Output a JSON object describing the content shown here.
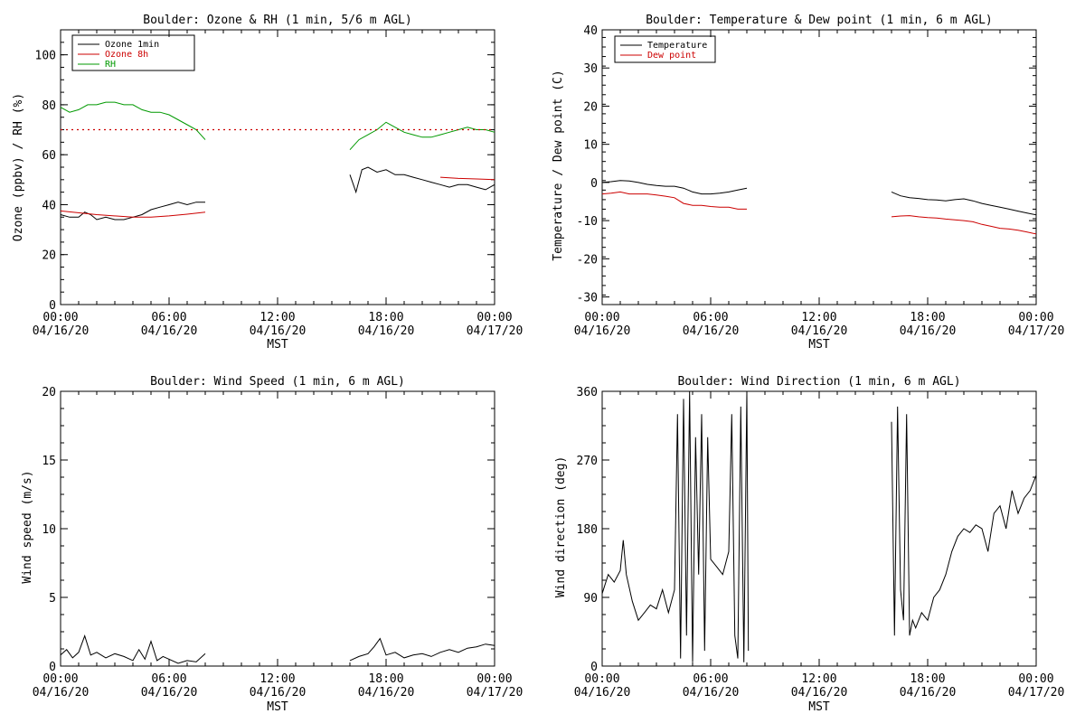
{
  "chart_data": [
    {
      "type": "line",
      "title": "Boulder: Ozone & RH (1 min, 5/6 m AGL)",
      "xlabel": "MST",
      "ylabel": "Ozone (ppbv) / RH (%)",
      "xlim": [
        "04/16/20 00:00",
        "04/17/20 00:00"
      ],
      "ylim": [
        0,
        110
      ],
      "yticks": [
        0,
        20,
        40,
        60,
        80,
        100
      ],
      "xticks": [
        {
          "time": "00:00",
          "date": "04/16/20"
        },
        {
          "time": "06:00",
          "date": "04/16/20"
        },
        {
          "time": "12:00",
          "date": "04/16/20"
        },
        {
          "time": "18:00",
          "date": "04/16/20"
        },
        {
          "time": "00:00",
          "date": "04/17/20"
        }
      ],
      "legend": {
        "placement": "top-left"
      },
      "series": [
        {
          "name": "Ozone 1min",
          "color": "#000000",
          "style": "solid",
          "x": [
            "00:00",
            "00:30",
            "01:00",
            "01:20",
            "01:40",
            "02:00",
            "02:30",
            "03:00",
            "03:30",
            "04:00",
            "04:30",
            "05:00",
            "05:30",
            "06:00",
            "06:30",
            "07:00",
            "07:30",
            "08:00",
            "16:00",
            "16:20",
            "16:40",
            "17:00",
            "17:30",
            "18:00",
            "18:30",
            "19:00",
            "19:30",
            "20:00",
            "20:30",
            "21:00",
            "21:30",
            "22:00",
            "22:30",
            "23:00",
            "23:30",
            "00:00"
          ],
          "y": [
            36,
            35,
            35,
            37,
            36,
            34,
            35,
            34,
            34,
            35,
            36,
            38,
            39,
            40,
            41,
            40,
            41,
            41,
            52,
            45,
            54,
            55,
            53,
            54,
            52,
            52,
            51,
            50,
            49,
            48,
            47,
            48,
            48,
            47,
            46,
            48
          ]
        },
        {
          "name": "Ozone 8h",
          "color": "#cc0000",
          "style": "solid",
          "x": [
            "00:00",
            "02:00",
            "04:00",
            "05:00",
            "06:00",
            "07:00",
            "08:00",
            "21:00",
            "22:00",
            "23:00",
            "00:00"
          ],
          "y": [
            37.5,
            36,
            35,
            35,
            35.5,
            36.2,
            37,
            51,
            50.5,
            50.3,
            50
          ]
        },
        {
          "name": "RH",
          "color": "#009900",
          "style": "solid",
          "x": [
            "00:00",
            "00:30",
            "01:00",
            "01:30",
            "02:00",
            "02:30",
            "03:00",
            "03:30",
            "04:00",
            "04:30",
            "05:00",
            "05:30",
            "06:00",
            "06:30",
            "07:00",
            "07:30",
            "08:00",
            "16:00",
            "16:30",
            "17:00",
            "17:30",
            "18:00",
            "18:30",
            "19:00",
            "19:30",
            "20:00",
            "20:30",
            "21:00",
            "21:30",
            "22:00",
            "22:30",
            "23:00",
            "23:30",
            "00:00"
          ],
          "y": [
            79,
            77,
            78,
            80,
            80,
            81,
            81,
            80,
            80,
            78,
            77,
            77,
            76,
            74,
            72,
            70,
            66,
            62,
            66,
            68,
            70,
            73,
            71,
            69,
            68,
            67,
            67,
            68,
            69,
            70,
            71,
            70,
            70,
            69
          ]
        },
        {
          "name": "",
          "color": "#cc0000",
          "style": "dotted",
          "x": [
            "00:00",
            "00:00"
          ],
          "y": [
            70,
            70
          ],
          "span": "full"
        }
      ]
    },
    {
      "type": "line",
      "title": "Boulder: Temperature & Dew point (1 min, 6 m AGL)",
      "xlabel": "MST",
      "ylabel": "Temperature / Dew point (C)",
      "xlim": [
        "04/16/20 00:00",
        "04/17/20 00:00"
      ],
      "ylim": [
        -32,
        40
      ],
      "yticks": [
        -30,
        -20,
        -10,
        0,
        10,
        20,
        30,
        40
      ],
      "xticks": [
        {
          "time": "00:00",
          "date": "04/16/20"
        },
        {
          "time": "06:00",
          "date": "04/16/20"
        },
        {
          "time": "12:00",
          "date": "04/16/20"
        },
        {
          "time": "18:00",
          "date": "04/16/20"
        },
        {
          "time": "00:00",
          "date": "04/17/20"
        }
      ],
      "legend": {
        "placement": "top-left"
      },
      "series": [
        {
          "name": "Temperature",
          "color": "#000000",
          "style": "solid",
          "x": [
            "00:00",
            "00:30",
            "01:00",
            "01:30",
            "02:00",
            "02:30",
            "03:00",
            "03:30",
            "04:00",
            "04:30",
            "05:00",
            "05:30",
            "06:00",
            "06:30",
            "07:00",
            "07:30",
            "08:00",
            "16:00",
            "16:30",
            "17:00",
            "17:30",
            "18:00",
            "18:30",
            "19:00",
            "19:30",
            "20:00",
            "20:30",
            "21:00",
            "21:30",
            "22:00",
            "22:30",
            "23:00",
            "23:30",
            "00:00"
          ],
          "y": [
            0,
            0.2,
            0.5,
            0.4,
            0,
            -0.5,
            -0.8,
            -1,
            -1,
            -1.5,
            -2.5,
            -3,
            -3,
            -2.8,
            -2.5,
            -2,
            -1.5,
            -2.5,
            -3.5,
            -4,
            -4.2,
            -4.5,
            -4.6,
            -4.8,
            -4.5,
            -4.3,
            -4.8,
            -5.5,
            -6,
            -6.5,
            -7,
            -7.5,
            -8,
            -8.5
          ]
        },
        {
          "name": "Dew point",
          "color": "#cc0000",
          "style": "solid",
          "x": [
            "00:00",
            "00:30",
            "01:00",
            "01:30",
            "02:00",
            "02:30",
            "03:00",
            "03:30",
            "04:00",
            "04:30",
            "05:00",
            "05:30",
            "06:00",
            "06:30",
            "07:00",
            "07:30",
            "08:00",
            "16:00",
            "16:30",
            "17:00",
            "17:30",
            "18:00",
            "18:30",
            "19:00",
            "19:30",
            "20:00",
            "20:30",
            "21:00",
            "21:30",
            "22:00",
            "22:30",
            "23:00",
            "23:30",
            "00:00"
          ],
          "y": [
            -3,
            -2.8,
            -2.5,
            -3,
            -3,
            -3,
            -3.3,
            -3.6,
            -4,
            -5.5,
            -6,
            -6,
            -6.3,
            -6.5,
            -6.5,
            -7,
            -7,
            -9,
            -8.8,
            -8.7,
            -9,
            -9.2,
            -9.3,
            -9.6,
            -9.8,
            -10,
            -10.3,
            -11,
            -11.5,
            -12,
            -12.2,
            -12.5,
            -13,
            -13.5
          ]
        }
      ]
    },
    {
      "type": "line",
      "title": "Boulder: Wind Speed (1 min, 6 m AGL)",
      "xlabel": "MST",
      "ylabel": "Wind speed (m/s)",
      "xlim": [
        "04/16/20 00:00",
        "04/17/20 00:00"
      ],
      "ylim": [
        0,
        20
      ],
      "yticks": [
        0,
        5,
        10,
        15,
        20
      ],
      "xticks": [
        {
          "time": "00:00",
          "date": "04/16/20"
        },
        {
          "time": "06:00",
          "date": "04/16/20"
        },
        {
          "time": "12:00",
          "date": "04/16/20"
        },
        {
          "time": "18:00",
          "date": "04/16/20"
        },
        {
          "time": "00:00",
          "date": "04/17/20"
        }
      ],
      "series": [
        {
          "name": "",
          "color": "#000000",
          "style": "solid",
          "x": [
            "00:00",
            "00:20",
            "00:40",
            "01:00",
            "01:20",
            "01:40",
            "02:00",
            "02:30",
            "03:00",
            "03:30",
            "04:00",
            "04:20",
            "04:40",
            "05:00",
            "05:20",
            "05:40",
            "06:00",
            "06:30",
            "07:00",
            "07:30",
            "08:00",
            "16:00",
            "16:30",
            "17:00",
            "17:20",
            "17:40",
            "18:00",
            "18:30",
            "19:00",
            "19:30",
            "20:00",
            "20:30",
            "21:00",
            "21:30",
            "22:00",
            "22:30",
            "23:00",
            "23:30",
            "00:00"
          ],
          "y": [
            0.8,
            1.2,
            0.6,
            1.0,
            2.2,
            0.8,
            1.0,
            0.6,
            0.9,
            0.7,
            0.4,
            1.2,
            0.5,
            1.8,
            0.4,
            0.7,
            0.5,
            0.2,
            0.4,
            0.3,
            0.9,
            0.4,
            0.7,
            0.9,
            1.4,
            2.0,
            0.8,
            1.0,
            0.6,
            0.8,
            0.9,
            0.7,
            1.0,
            1.2,
            1.0,
            1.3,
            1.4,
            1.6,
            1.5
          ]
        }
      ]
    },
    {
      "type": "line",
      "title": "Boulder: Wind Direction (1 min, 6 m AGL)",
      "xlabel": "MST",
      "ylabel": "Wind direction (deg)",
      "xlim": [
        "04/16/20 00:00",
        "04/17/20 00:00"
      ],
      "ylim": [
        0,
        360
      ],
      "yticks": [
        0,
        90,
        180,
        270,
        360
      ],
      "xticks": [
        {
          "time": "00:00",
          "date": "04/16/20"
        },
        {
          "time": "06:00",
          "date": "04/16/20"
        },
        {
          "time": "12:00",
          "date": "04/16/20"
        },
        {
          "time": "18:00",
          "date": "04/16/20"
        },
        {
          "time": "00:00",
          "date": "04/17/20"
        }
      ],
      "series": [
        {
          "name": "",
          "color": "#000000",
          "style": "solid",
          "x": [
            "00:00",
            "00:20",
            "00:40",
            "01:00",
            "01:10",
            "01:20",
            "01:40",
            "02:00",
            "02:20",
            "02:40",
            "03:00",
            "03:20",
            "03:40",
            "04:00",
            "04:10",
            "04:20",
            "04:30",
            "04:40",
            "04:50",
            "05:00",
            "05:10",
            "05:20",
            "05:30",
            "05:40",
            "05:50",
            "06:00",
            "06:20",
            "06:40",
            "07:00",
            "07:10",
            "07:20",
            "07:30",
            "07:40",
            "07:50",
            "08:00",
            "08:05",
            "16:00",
            "16:10",
            "16:20",
            "16:30",
            "16:40",
            "16:50",
            "17:00",
            "17:10",
            "17:20",
            "17:40",
            "18:00",
            "18:20",
            "18:40",
            "19:00",
            "19:20",
            "19:40",
            "20:00",
            "20:20",
            "20:40",
            "21:00",
            "21:20",
            "21:40",
            "22:00",
            "22:20",
            "22:40",
            "23:00",
            "23:20",
            "23:40",
            "00:00"
          ],
          "y": [
            95,
            120,
            110,
            125,
            165,
            120,
            85,
            60,
            70,
            80,
            75,
            100,
            70,
            100,
            330,
            10,
            350,
            40,
            360,
            5,
            300,
            120,
            330,
            20,
            300,
            140,
            130,
            120,
            150,
            330,
            40,
            10,
            340,
            5,
            360,
            20,
            320,
            40,
            340,
            100,
            60,
            330,
            40,
            60,
            50,
            70,
            60,
            90,
            100,
            120,
            150,
            170,
            180,
            175,
            185,
            180,
            150,
            200,
            210,
            180,
            230,
            200,
            220,
            230,
            250
          ]
        }
      ]
    }
  ]
}
